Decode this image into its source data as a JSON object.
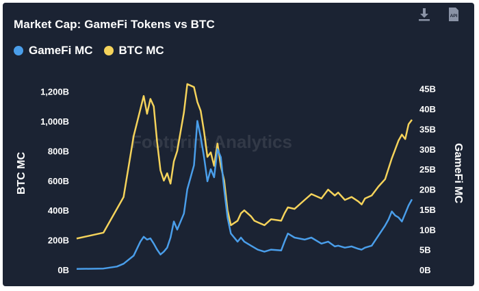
{
  "header": {
    "title": "Market Cap: GameFi Tokens vs BTC",
    "watermark": "Footprint Analytics"
  },
  "toolbar": {
    "download_icon": "download-icon",
    "api_icon": "api-icon",
    "api_label": "API"
  },
  "legend": [
    {
      "name": "GameFi MC",
      "color": "#4a9eea"
    },
    {
      "name": "BTC MC",
      "color": "#f5d35b"
    }
  ],
  "colors": {
    "background": "#1b2333",
    "gamefi": "#4a9eea",
    "btc": "#f5d35b",
    "axis_text": "#ffffff",
    "gridline": "#2a3346"
  },
  "chart_data": {
    "type": "line",
    "title": "Market Cap: GameFi Tokens vs BTC",
    "xlabel": "",
    "grid": false,
    "legend_position": "top-left",
    "left_axis": {
      "label": "BTC MC",
      "range": [
        0,
        1300
      ],
      "unit": "B",
      "ticks": [
        "0B",
        "200B",
        "400B",
        "600B",
        "800B",
        "1,000B",
        "1,200B"
      ],
      "tick_values": [
        0,
        200,
        400,
        600,
        800,
        1000,
        1200
      ]
    },
    "right_axis": {
      "label": "GameFi MC",
      "range": [
        0,
        48
      ],
      "unit": "B",
      "ticks": [
        "0B",
        "5B",
        "10B",
        "15B",
        "20B",
        "25B",
        "30B",
        "35B",
        "40B",
        "45B"
      ],
      "tick_values": [
        0,
        5,
        10,
        15,
        20,
        25,
        30,
        35,
        40,
        45
      ]
    },
    "x_index_range": [
      0,
      100
    ],
    "series": [
      {
        "name": "BTC MC",
        "axis": "left",
        "color": "#f5d35b",
        "x": [
          0,
          8,
          12,
          14,
          17,
          19,
          20,
          21,
          22,
          23,
          24,
          25,
          26,
          27,
          28,
          29,
          30,
          32,
          33,
          35,
          36,
          37,
          38,
          39,
          40,
          41,
          42,
          43,
          44,
          45,
          46,
          48,
          49,
          50,
          52,
          53,
          54,
          56,
          58,
          61,
          62,
          63,
          65,
          68,
          70,
          73,
          75,
          77,
          78,
          80,
          82,
          84,
          85,
          86,
          88,
          90,
          92,
          93,
          94,
          95,
          96,
          97,
          98,
          99,
          100
        ],
        "y": [
          210,
          250,
          410,
          490,
          900,
          1080,
          1170,
          1050,
          1150,
          1100,
          860,
          670,
          600,
          650,
          580,
          730,
          800,
          1060,
          1250,
          1230,
          1130,
          1070,
          930,
          760,
          790,
          700,
          850,
          700,
          600,
          400,
          300,
          330,
          380,
          400,
          360,
          330,
          320,
          300,
          340,
          330,
          380,
          420,
          410,
          470,
          510,
          480,
          540,
          500,
          520,
          470,
          490,
          460,
          440,
          480,
          500,
          560,
          610,
          680,
          750,
          810,
          870,
          910,
          880,
          980,
          1010
        ]
      },
      {
        "name": "GameFi MC",
        "axis": "right",
        "color": "#4a9eea",
        "x": [
          0,
          8,
          12,
          14,
          17,
          19,
          20,
          21,
          22,
          23,
          24,
          25,
          26,
          27,
          28,
          29,
          30,
          32,
          33,
          35,
          36,
          37,
          38,
          39,
          40,
          41,
          42,
          43,
          44,
          45,
          46,
          48,
          49,
          50,
          52,
          53,
          54,
          56,
          58,
          61,
          62,
          63,
          65,
          68,
          70,
          73,
          75,
          77,
          78,
          80,
          82,
          84,
          85,
          86,
          88,
          90,
          92,
          93,
          94,
          95,
          96,
          97,
          98,
          99,
          100
        ],
        "y": [
          0.2,
          0.3,
          0.8,
          1.5,
          3.5,
          7.0,
          8.2,
          7.5,
          7.8,
          6.5,
          5.0,
          3.8,
          4.5,
          5.5,
          8.0,
          12.0,
          10.0,
          14.0,
          20.0,
          26.0,
          37.0,
          33.0,
          28.0,
          22.0,
          25.0,
          23.0,
          30.0,
          28.0,
          20.0,
          13.0,
          9.0,
          7.0,
          8.0,
          7.0,
          6.0,
          5.5,
          5.0,
          4.5,
          5.0,
          4.8,
          7.0,
          9.0,
          8.0,
          7.5,
          8.0,
          6.5,
          7.0,
          5.8,
          6.0,
          5.5,
          5.8,
          5.2,
          5.0,
          5.5,
          6.0,
          8.5,
          11.0,
          12.5,
          14.5,
          13.5,
          13.0,
          12.0,
          14.0,
          16.0,
          17.5
        ]
      }
    ]
  }
}
